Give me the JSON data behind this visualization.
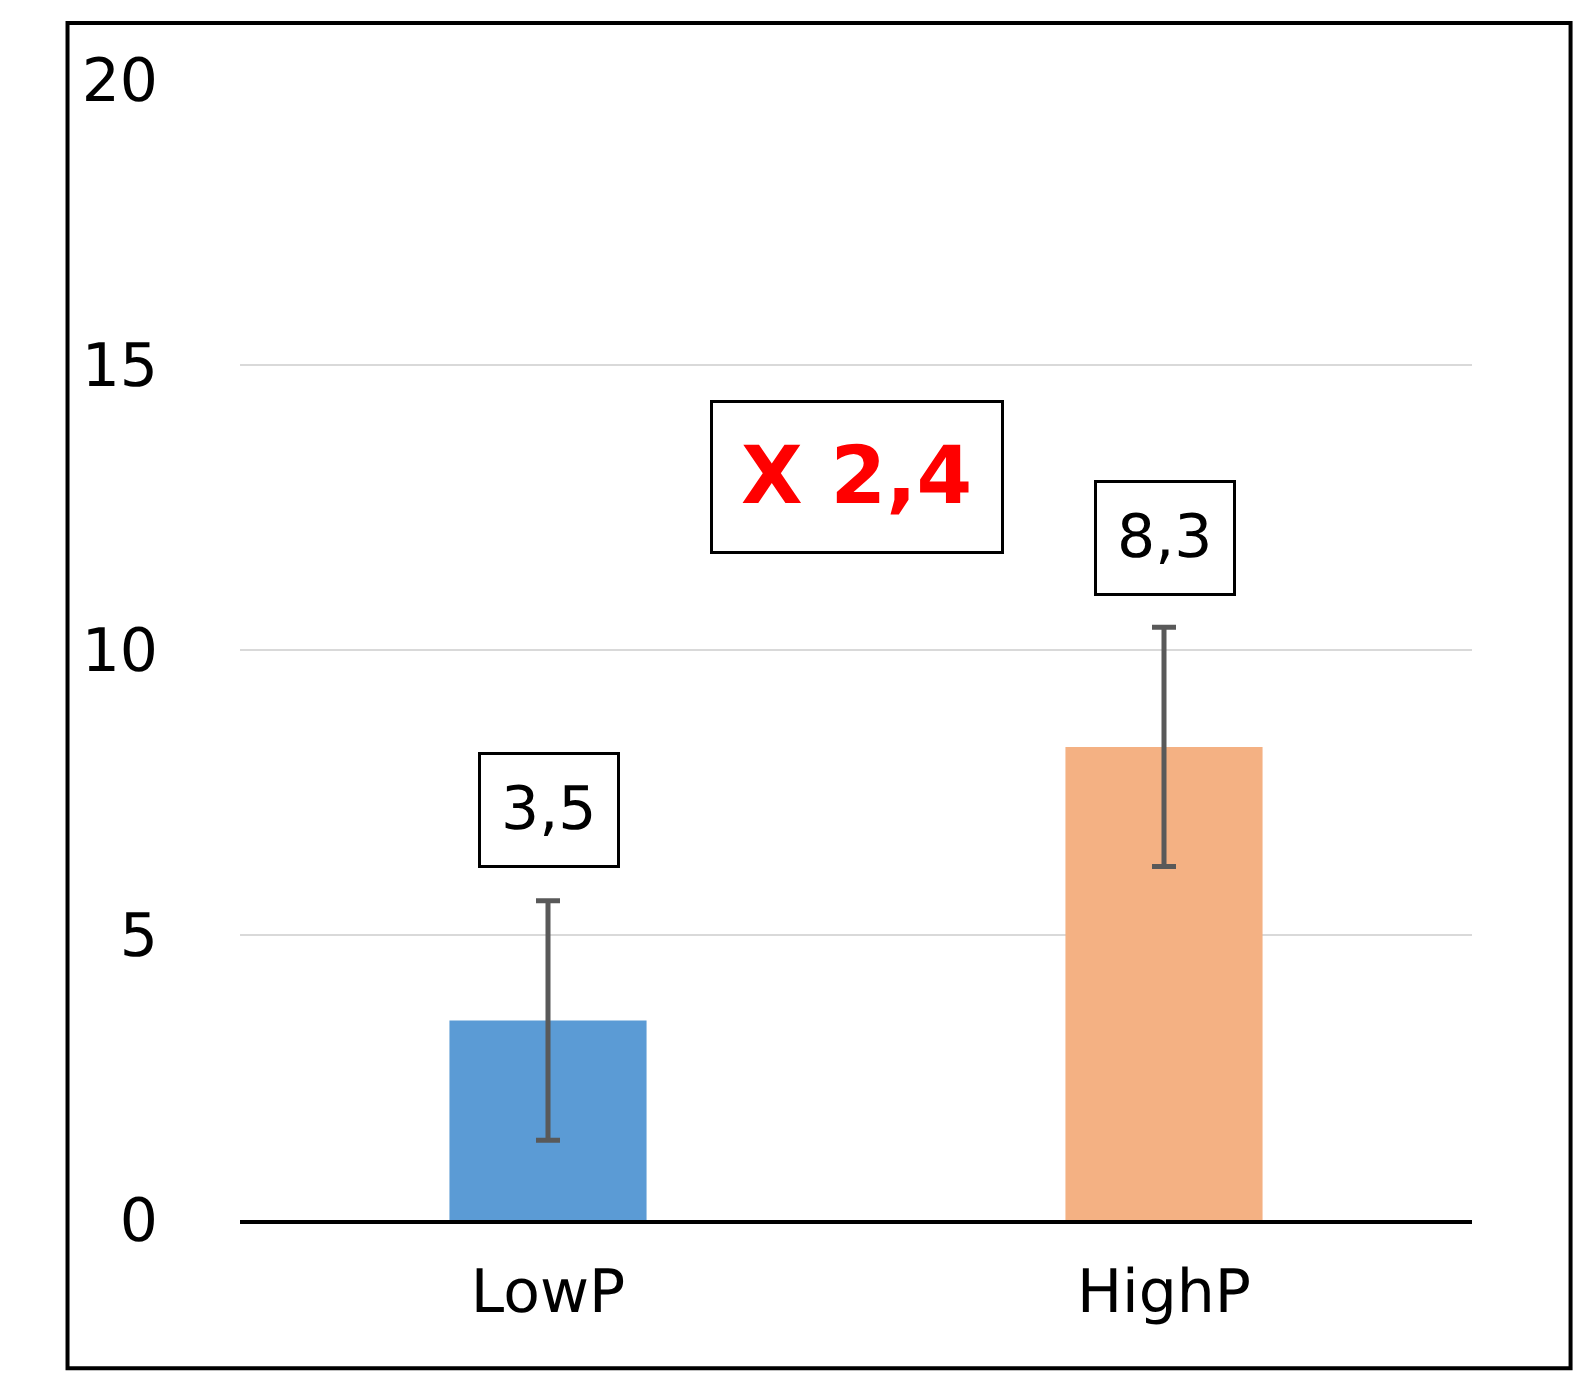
{
  "chart_data": {
    "type": "bar",
    "categories": [
      "LowP",
      "HighP"
    ],
    "values": [
      3.5,
      8.3
    ],
    "colors": [
      "#5b9bd5",
      "#f4b183"
    ],
    "errors": [
      2.1,
      2.1
    ],
    "value_labels": [
      "3,5",
      "8,3"
    ],
    "annotations": [
      "X 2,4"
    ],
    "ylim": [
      0,
      20
    ],
    "yticks": [
      0,
      5,
      10,
      15,
      20
    ],
    "grid": "y"
  }
}
